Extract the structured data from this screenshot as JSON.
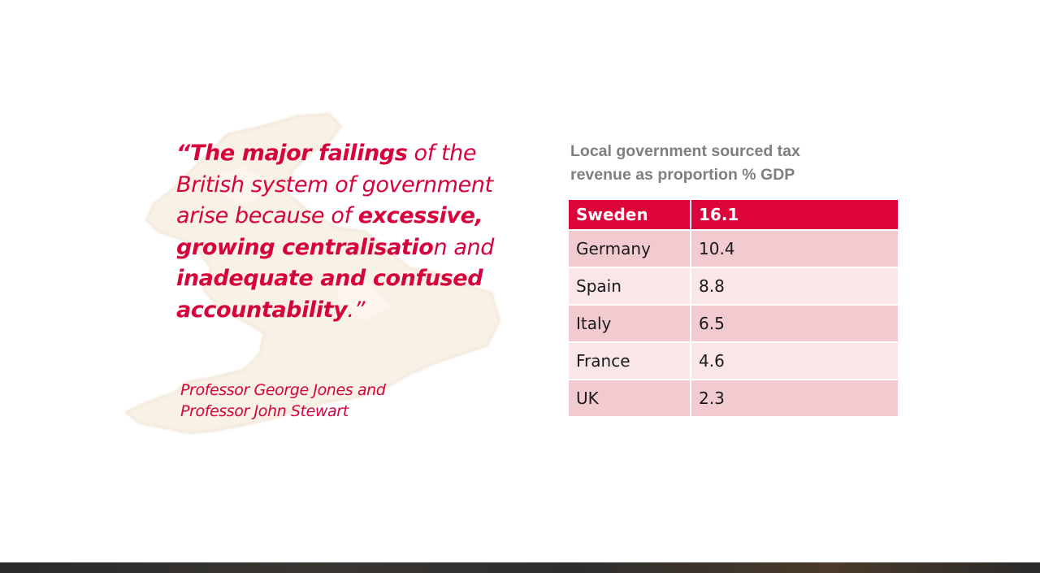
{
  "quote": {
    "open": "“",
    "part1_bold": "The major failings",
    "part2": " of the British system of government arise because of ",
    "part3_bold": "excessive, growing centralisatio",
    "part4": "n and ",
    "part5_bold": "inadequate and confused accountability",
    "close": ".”"
  },
  "attribution": {
    "line1": "Professor George Jones and",
    "line2": "Professor John Stewart"
  },
  "table": {
    "title_line1": "Local government  sourced tax",
    "title_line2": "revenue as proportion % GDP",
    "rows": [
      {
        "country": "Sweden",
        "value": "16.1"
      },
      {
        "country": "Germany",
        "value": "10.4"
      },
      {
        "country": "Spain",
        "value": "8.8"
      },
      {
        "country": "Italy",
        "value": "6.5"
      },
      {
        "country": "France",
        "value": "4.6"
      },
      {
        "country": "UK",
        "value": "2.3"
      }
    ]
  },
  "colors": {
    "accent": "#d6043c",
    "header_row": "#dd043c",
    "row_dark": "#f1cbd0",
    "row_light": "#f8e6e8",
    "title_grey": "#7f7f7f"
  }
}
